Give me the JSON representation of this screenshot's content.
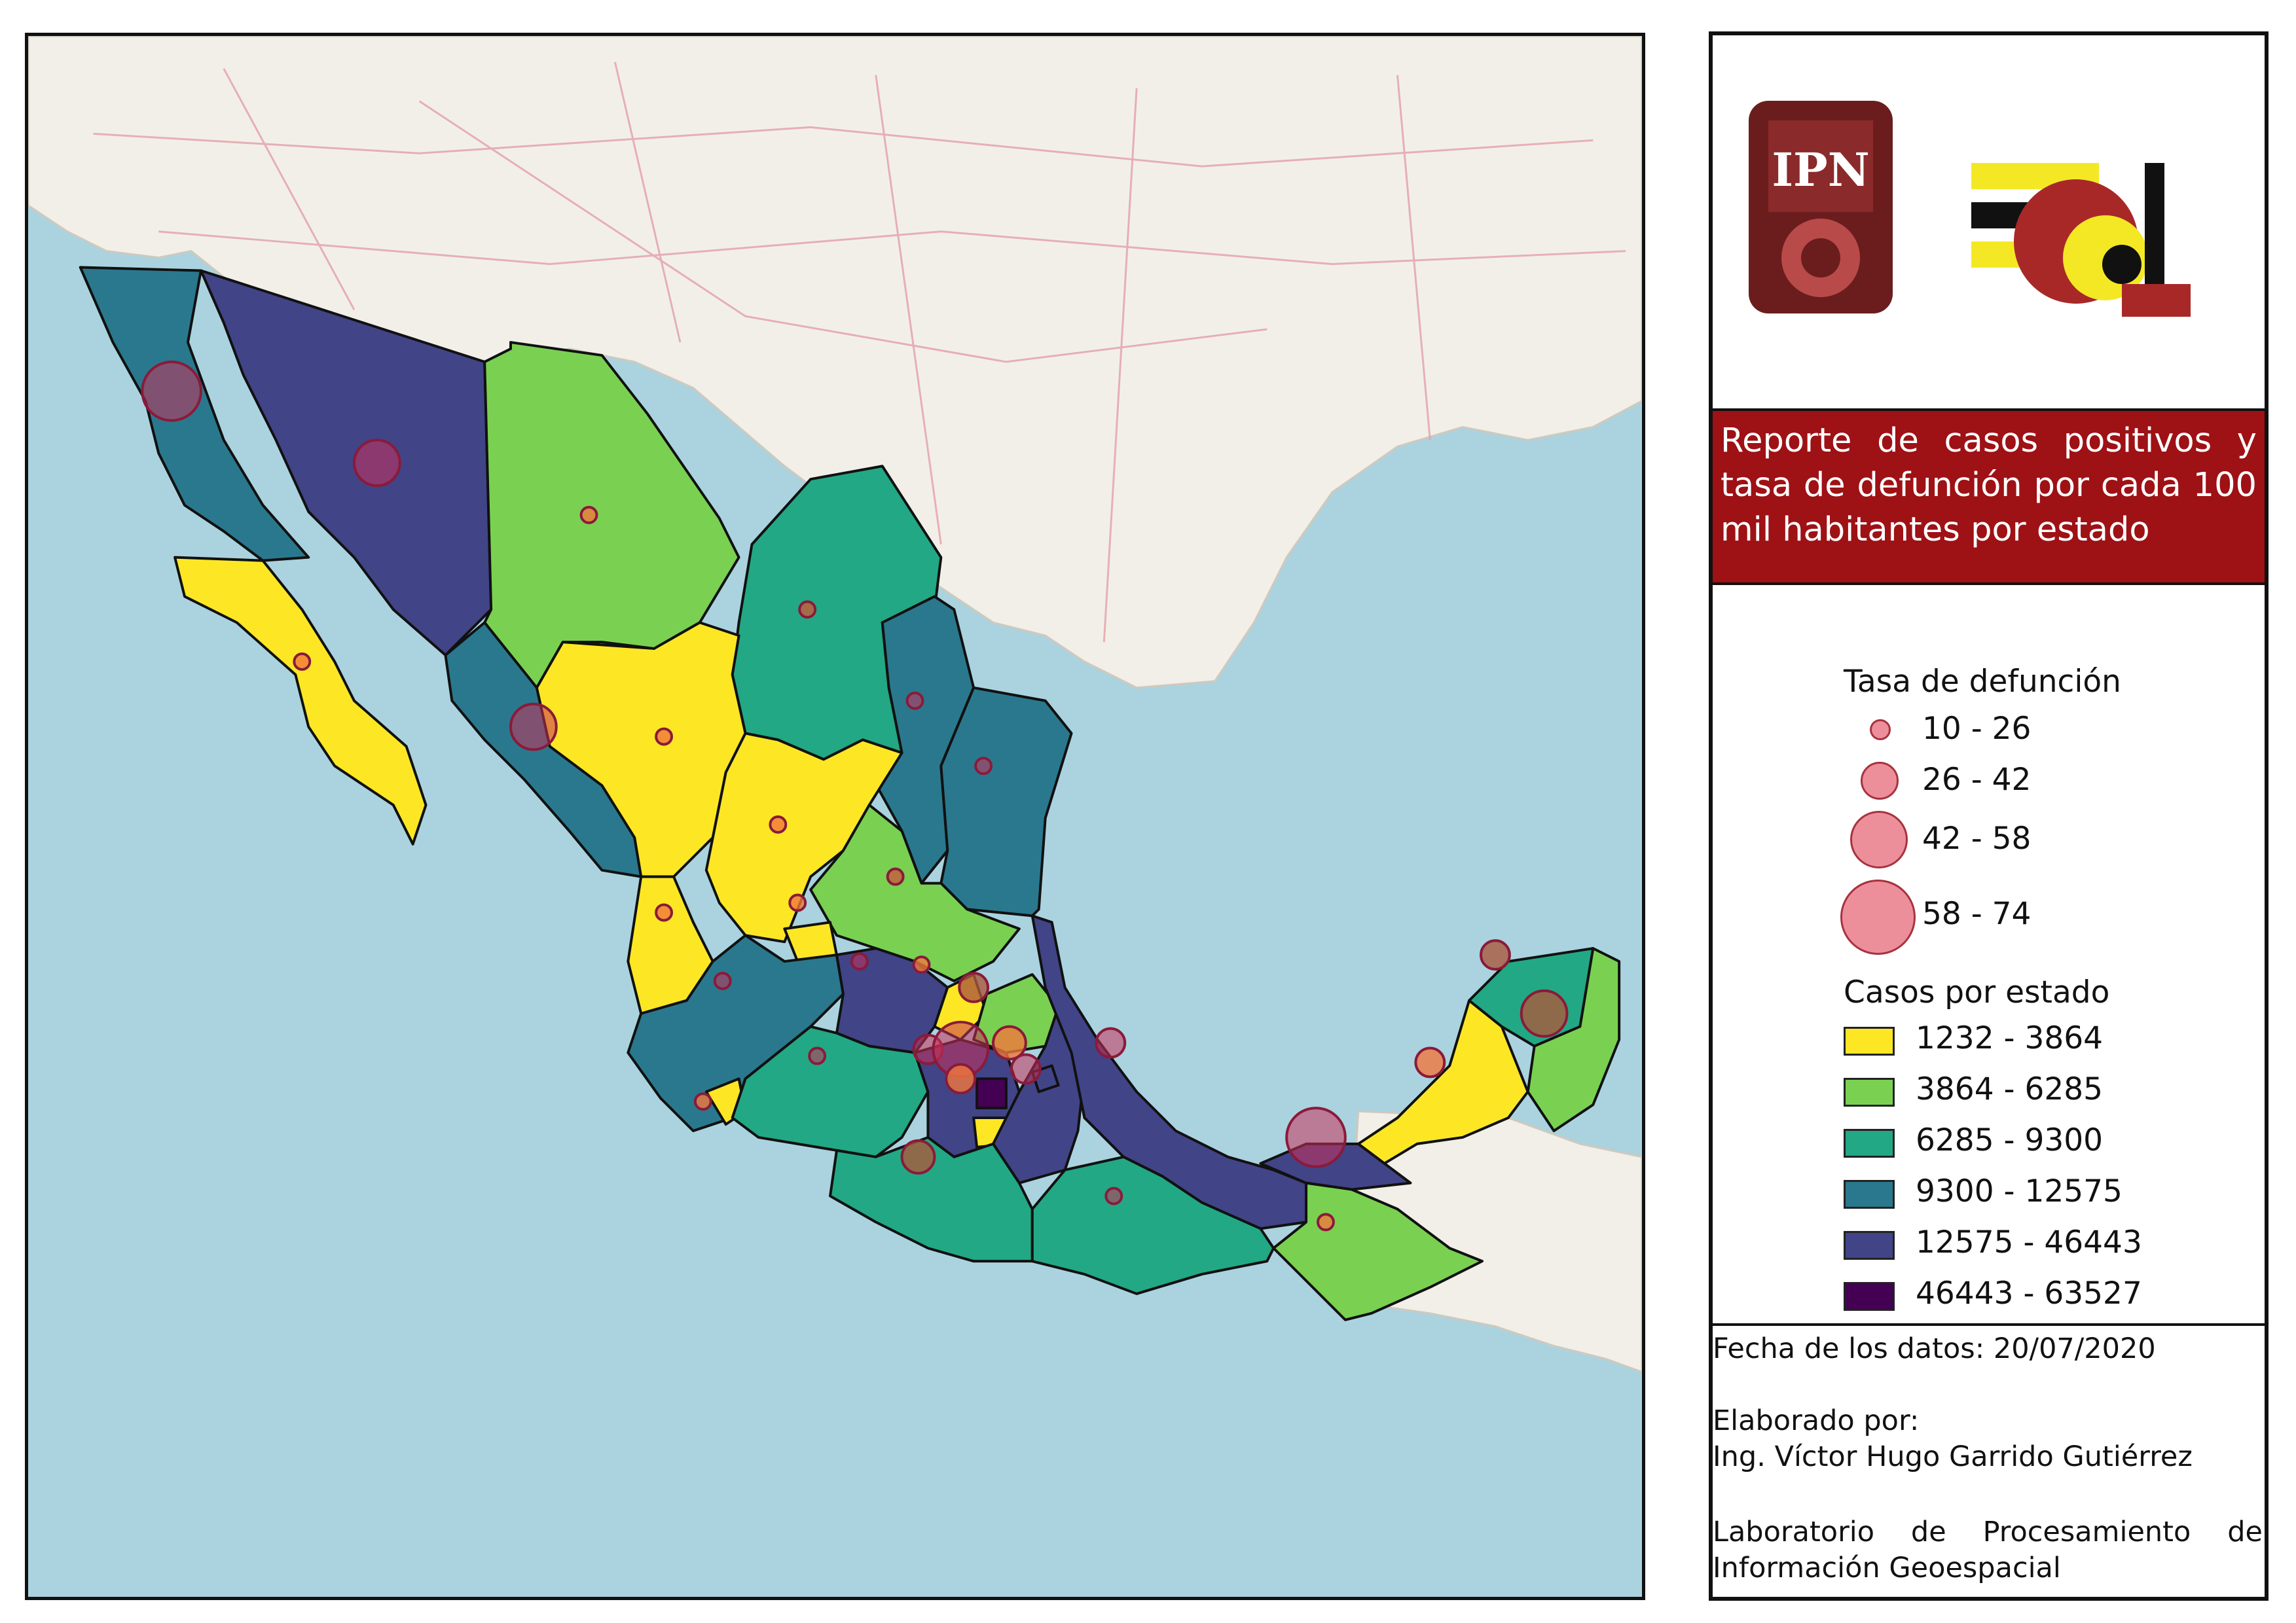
{
  "title": "Reporte de casos positivos y tasa de defunción por cada 100 mil habitantes por estado",
  "legend": {
    "death_rate_title": "Tasa de defunción",
    "death_rate_classes": [
      {
        "label": "10 - 26"
      },
      {
        "label": "26 - 42"
      },
      {
        "label": "42 - 58"
      },
      {
        "label": "58 - 74"
      }
    ],
    "cases_title": "Casos por estado",
    "cases_classes": [
      {
        "label": "1232 - 3864",
        "color": "#fde725"
      },
      {
        "label": "3864 - 6285",
        "color": "#7ad151"
      },
      {
        "label": "6285 - 9300",
        "color": "#22a884"
      },
      {
        "label": "9300 - 12575",
        "color": "#2a788e"
      },
      {
        "label": "12575 - 46443",
        "color": "#414487"
      },
      {
        "label": "46443 - 63527",
        "color": "#440154"
      }
    ]
  },
  "footer": {
    "date_line": "Fecha de los datos: 20/07/2020",
    "made_by_label": "Elaborado por:",
    "author": "Ing. Víctor Hugo Garrido Gutiérrez",
    "lab_line1": "Laboratorio de Procesamiento de",
    "lab_line2": "Información Geoespacial"
  },
  "logos": {
    "left": "ipn-logo",
    "right": "esia-logo",
    "left_text": "IPN"
  },
  "colors": {
    "sea": "#aad3df",
    "land": "#f2efe9",
    "title_bg": "#9e1115",
    "bubble": "#e56978"
  }
}
